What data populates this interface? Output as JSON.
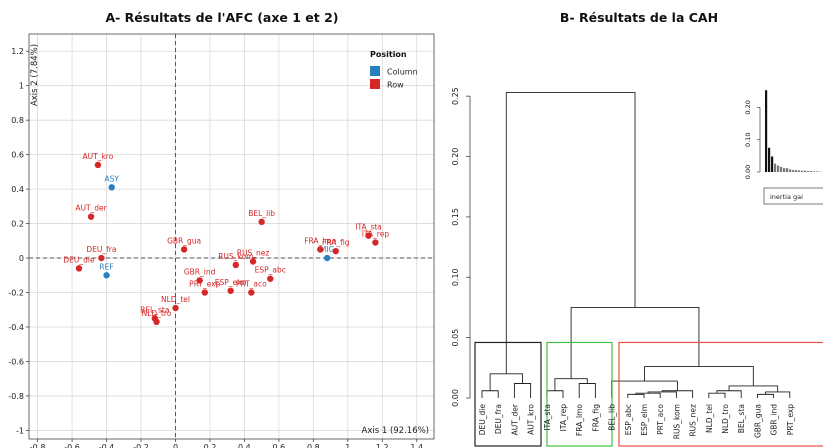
{
  "colors": {
    "column": "#2a7fbf",
    "row": "#d62728",
    "grid": "#d9d9d9",
    "cluster_green": "#3fc03f",
    "cluster_red": "#e8514a",
    "cluster_dark": "#222222"
  },
  "chart_data": [
    {
      "type": "scatter",
      "title": "A- Résultats de l'AFC (axe 1 et 2)",
      "xlabel": "Axis 1 (92.16%)",
      "ylabel": "Axis 2 (7.84%)",
      "xlim": [
        -0.85,
        1.5
      ],
      "ylim": [
        -1.05,
        1.3
      ],
      "xticks": [
        -0.8,
        -0.6,
        -0.4,
        -0.2,
        0,
        0.2,
        0.4,
        0.6,
        0.8,
        1,
        1.2,
        1.4
      ],
      "xtick_labels": [
        "-0.8",
        "-0.6",
        "-0.4",
        "-0.2",
        "0",
        "0.2",
        "0.4",
        "0.6",
        "0.8",
        "1",
        "1.2",
        "1.4"
      ],
      "yticks": [
        -1,
        -0.8,
        -0.6,
        -0.4,
        -0.2,
        0,
        0.2,
        0.4,
        0.6,
        0.8,
        1,
        1.2
      ],
      "ytick_labels": [
        "-1",
        "-0.8",
        "-0.6",
        "-0.4",
        "-0.2",
        "0",
        "0.2",
        "0.4",
        "0.6",
        "0.8",
        "1",
        "1.2"
      ],
      "grid": true,
      "legend": {
        "title": "Position",
        "placement": "top-right",
        "entries": [
          {
            "name": "Column",
            "color": "#2a7fbf"
          },
          {
            "name": "Row",
            "color": "#d62728"
          }
        ]
      },
      "series": [
        {
          "name": "Column",
          "points": [
            {
              "label": "ASY",
              "x": -0.37,
              "y": 0.41
            },
            {
              "label": "REF",
              "x": -0.4,
              "y": -0.1
            },
            {
              "label": "MIG",
              "x": 0.88,
              "y": 0.0
            }
          ]
        },
        {
          "name": "Row",
          "points": [
            {
              "label": "AUT_kro",
              "x": -0.45,
              "y": 0.54
            },
            {
              "label": "AUT_der",
              "x": -0.49,
              "y": 0.24
            },
            {
              "label": "DEU_fra",
              "x": -0.43,
              "y": 0.0
            },
            {
              "label": "DEU_die",
              "x": -0.56,
              "y": -0.06
            },
            {
              "label": "NLD_tel",
              "x": 0.0,
              "y": -0.29
            },
            {
              "label": "BEL_sta",
              "x": -0.12,
              "y": -0.35
            },
            {
              "label": "NLD_tro",
              "x": -0.11,
              "y": -0.37
            },
            {
              "label": "GBR_gua",
              "x": 0.05,
              "y": 0.05
            },
            {
              "label": "GBR_ind",
              "x": 0.14,
              "y": -0.13
            },
            {
              "label": "PRT_exp",
              "x": 0.17,
              "y": -0.2
            },
            {
              "label": "ESP_elm",
              "x": 0.32,
              "y": -0.19
            },
            {
              "label": "RUS_kom",
              "x": 0.35,
              "y": -0.04
            },
            {
              "label": "RUS_nez",
              "x": 0.45,
              "y": -0.02
            },
            {
              "label": "ESP_abc",
              "x": 0.55,
              "y": -0.12
            },
            {
              "label": "PRT_aco",
              "x": 0.44,
              "y": -0.2
            },
            {
              "label": "BEL_lib",
              "x": 0.5,
              "y": 0.21
            },
            {
              "label": "FRA_lmo",
              "x": 0.84,
              "y": 0.05
            },
            {
              "label": "FRA_fig",
              "x": 0.93,
              "y": 0.04
            },
            {
              "label": "ITA_sta",
              "x": 1.12,
              "y": 0.13
            },
            {
              "label": "ITA_rep",
              "x": 1.16,
              "y": 0.09
            }
          ]
        }
      ]
    },
    {
      "type": "dendrogram",
      "title": "B- Résultats de la CAH",
      "ylim": [
        0,
        0.27
      ],
      "yticks": [
        0,
        0.05,
        0.1,
        0.15,
        0.2,
        0.25
      ],
      "ytick_labels": [
        "0.00",
        "0.05",
        "0.10",
        "0.15",
        "0.20",
        "0.25"
      ],
      "leaves": [
        "DEU_die",
        "DEU_fra",
        "AUT_der",
        "AUT_kro",
        "ITA_sta",
        "ITA_rep",
        "FRA_lmo",
        "FRA_fig",
        "BEL_lib",
        "ESP_abc",
        "ESP_elm",
        "PRT_aco",
        "RUS_kom",
        "RUS_nez",
        "NLD_tel",
        "NLD_tro",
        "BEL_sta",
        "GBR_gua",
        "GBR_ind",
        "PRT_exp"
      ],
      "merge_heights": [
        0.006,
        0.012,
        0.016,
        0.02,
        0.006,
        0.012,
        0.026,
        0.048,
        0.048,
        0.075,
        0.253
      ],
      "inset": {
        "label": "inertia gai",
        "yticks": [
          "0.00",
          "0.10",
          "0.20"
        ],
        "bar_values": [
          0.253,
          0.075,
          0.048,
          0.026,
          0.02,
          0.016,
          0.012,
          0.012,
          0.008,
          0.006,
          0.006,
          0.005,
          0.004,
          0.004,
          0.003,
          0.003,
          0.002,
          0.002,
          0.001
        ]
      }
    }
  ]
}
